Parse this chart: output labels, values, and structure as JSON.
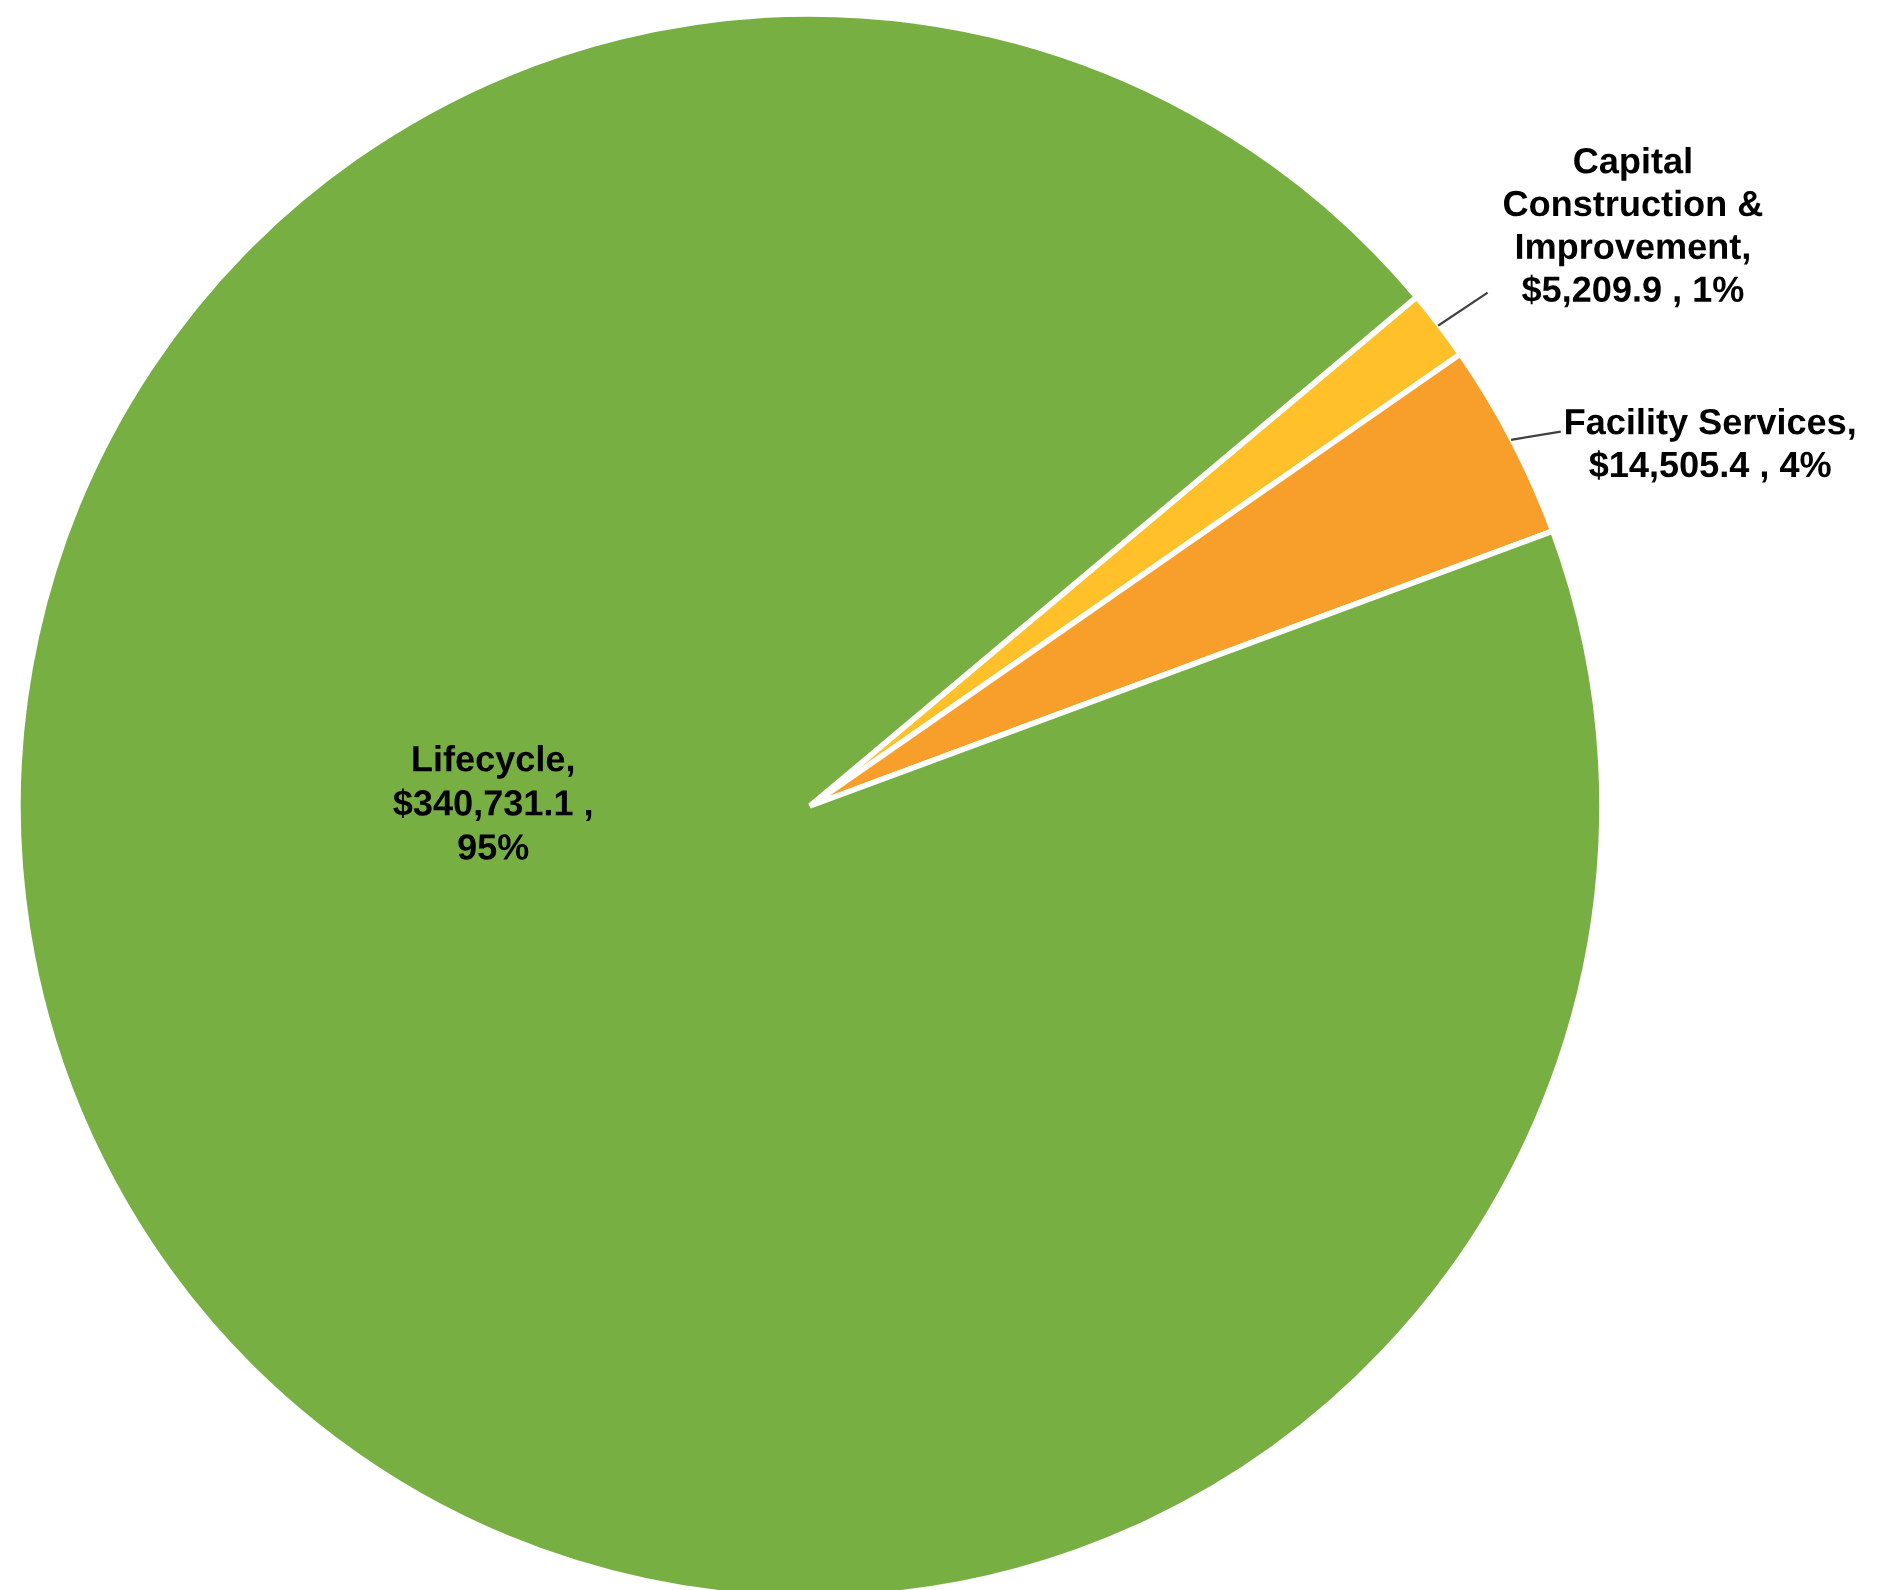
{
  "chart_data": {
    "type": "pie",
    "categories": [
      "Capital Construction & Improvement",
      "Facility Services",
      "Lifecycle"
    ],
    "values": [
      5209.9,
      14505.4,
      340731.1
    ],
    "colors": [
      "#ffc02a",
      "#f79f2a",
      "#77af43"
    ],
    "value_labels": [
      ", $5,209.9 , 1%",
      ", $14,505.4 , 4%",
      ", $340,731.1 , 95%"
    ]
  }
}
